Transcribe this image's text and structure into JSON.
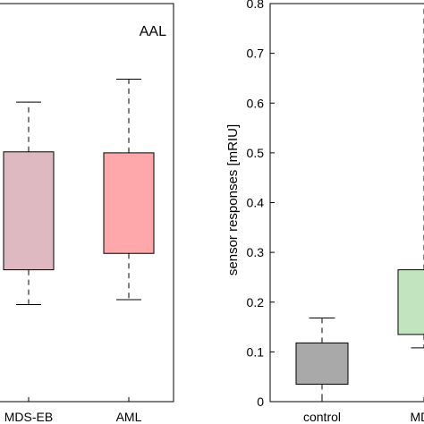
{
  "chart_data": [
    {
      "type": "box",
      "panel_title": "AAL",
      "categories": [
        "MDS-EB",
        "AML"
      ],
      "boxes": [
        {
          "category": "MDS-EB",
          "whisker_low": 0.195,
          "q1": 0.265,
          "q3": 0.502,
          "whisker_high": 0.602,
          "color": "#deb9c1"
        },
        {
          "category": "AML",
          "whisker_low": 0.205,
          "q1": 0.298,
          "q3": 0.5,
          "whisker_high": 0.648,
          "color": "#ffa8ab"
        }
      ],
      "ylim": [
        0,
        0.8
      ],
      "xlabel": "",
      "ylabel": ""
    },
    {
      "type": "box",
      "panel_title": "",
      "categories": [
        "control",
        "MDS"
      ],
      "boxes": [
        {
          "category": "control",
          "whisker_low": 0.0,
          "q1": 0.035,
          "q3": 0.118,
          "whisker_high": 0.168,
          "color": "#a9a9a9"
        },
        {
          "category": "MDS",
          "whisker_low": 0.108,
          "q1": 0.135,
          "q3": 0.265,
          "whisker_high": null,
          "color": "#c2e5bf"
        }
      ],
      "ylim": [
        0,
        0.8
      ],
      "yticks": [
        "0",
        "0.1",
        "0.2",
        "0.3",
        "0.4",
        "0.5",
        "0.6",
        "0.7",
        "0.8"
      ],
      "xlabel": "",
      "ylabel": "sensor responses [mRIU]"
    }
  ]
}
